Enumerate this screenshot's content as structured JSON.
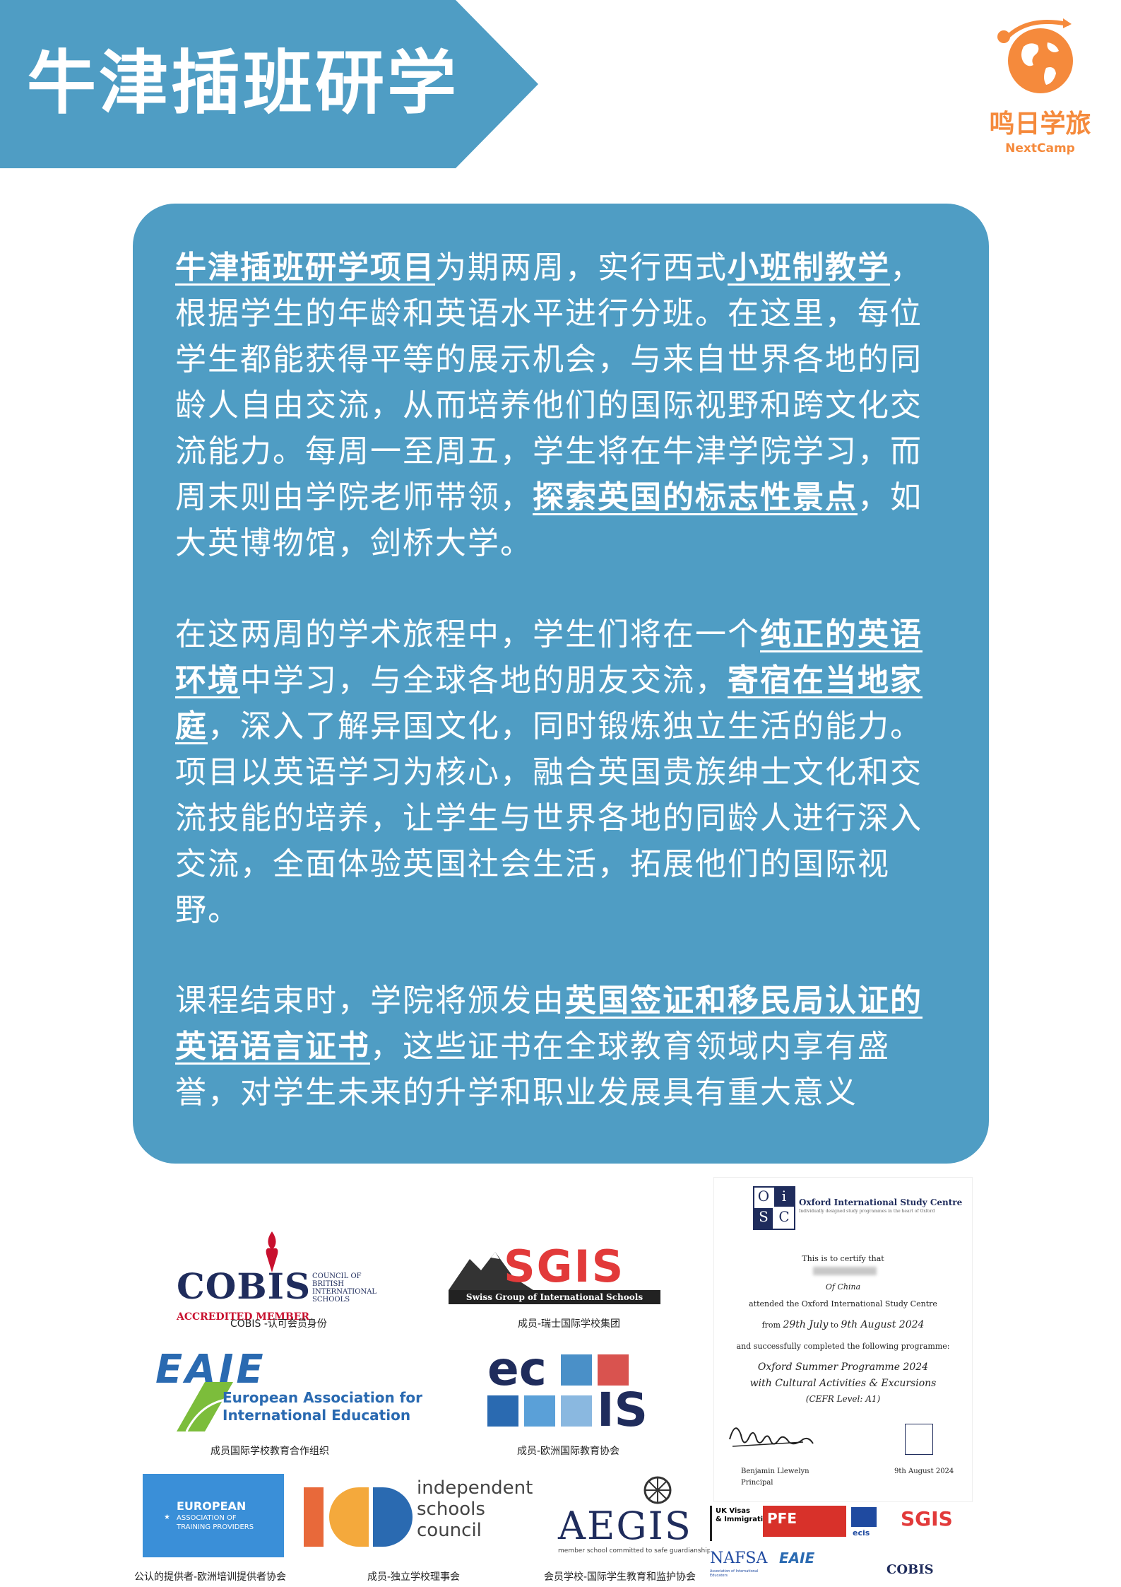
{
  "header": {
    "title": "牛津插班研学"
  },
  "logo": {
    "name": "鸣日学旅",
    "sub": "NextCamp",
    "icon": "globe-icon",
    "color": "#f58a3c"
  },
  "theme": {
    "primary": "#4f9dc4"
  },
  "card": {
    "p1": [
      {
        "text": "牛津插班研学项目",
        "hl": true
      },
      {
        "text": "为期两周，实行西式",
        "hl": false
      },
      {
        "text": "小班制教学",
        "hl": true
      },
      {
        "text": "，根据学生的年龄和英语水平进行分班。在这里，每位学生都能获得平等的展示机会，与来自世界各地的同龄人自由交流，从而培养他们的国际视野和跨文化交流能力。每周一至周五，学生将在牛津学院学习，而周末则由学院老师带领，",
        "hl": false
      },
      {
        "text": "探索英国的标志性景点",
        "hl": true
      },
      {
        "text": "，如大英博物馆，剑桥大学。",
        "hl": false
      }
    ],
    "p2": [
      {
        "text": "在这两周的学术旅程中，学生们将在一个",
        "hl": false
      },
      {
        "text": "纯正的英语环境",
        "hl": true
      },
      {
        "text": "中学习，与全球各地的朋友交流，",
        "hl": false
      },
      {
        "text": "寄宿在当地家庭",
        "hl": true
      },
      {
        "text": "，深入了解异国文化，同时锻炼独立生活的能力。项目以英语学习为核心，融合英国贵族绅士文化和交流技能的培养，让学生与世界各地的同龄人进行深入交流，全面体验英国社会生活，拓展他们的国际视野。",
        "hl": false
      }
    ],
    "p3": [
      {
        "text": "课程结束时，学院将颁发由",
        "hl": false
      },
      {
        "text": "英国签证和移民局认证的英语语言证书",
        "hl": true
      },
      {
        "text": "，这些证书在全球教育领域内享有盛誉，对学生未来的升学和职业发展具有重大意义",
        "hl": false
      }
    ]
  },
  "accreditations": {
    "cobis": {
      "logo": "COBIS",
      "side": [
        "COUNCIL OF",
        "BRITISH",
        "INTERNATIONAL",
        "SCHOOLS"
      ],
      "member": "ACCREDITED MEMBER",
      "caption": "COBIS -认可会员身份"
    },
    "sgis": {
      "logo": "SGIS",
      "banner": "Swiss Group of International Schools",
      "caption": "成员-瑞士国际学校集团"
    },
    "eaie": {
      "logo": "EAIE",
      "line1": "European Association for",
      "line2": "International Education",
      "caption": "成员国际学校教育合作组织"
    },
    "ecis": {
      "logo1": "ec",
      "logo2": "IS",
      "caption": "成员-欧洲国际教育协会"
    },
    "eatp": {
      "line1": "EUROPEAN",
      "line2": "ASSOCIATION OF",
      "line3": "TRAINING PROVIDERS",
      "caption": "公认的提供者-欧洲培训提供者协会"
    },
    "isc": {
      "line1": "independent",
      "line2": "schools",
      "line3": "council",
      "caption": "成员-独立学校理事会"
    },
    "aegis": {
      "logo": "AEGIS",
      "tagline": "member school committed to safe guardianship",
      "caption": "会员学校-国际学生教育和监护协会"
    }
  },
  "certificate": {
    "org_letters": [
      "O",
      "i",
      "S",
      "C"
    ],
    "org_name": "Oxford International Study Centre",
    "org_tagline": "Individually designed study programmes in the heart of Oxford",
    "l1": "This is to certify that",
    "l2": "Of China",
    "l3": "attended the Oxford International Study Centre",
    "from_word": "from",
    "from_date": "29th July",
    "to_word": "to",
    "to_date": "9th August 2024",
    "l5": "and successfully completed the following programme:",
    "prog1": "Oxford Summer Programme 2024",
    "prog2": "with Cultural Activities & Excursions",
    "prog3": "(CEFR Level: A1)",
    "signer": "Benjamin Llewelyn",
    "signer_role": "Principal",
    "date": "9th August 2024"
  },
  "memberships": {
    "ukvi": [
      "UK Visas",
      "& Immigration"
    ],
    "pfe": "PFE",
    "ecis": "ecis",
    "sgis": "SGIS",
    "nafsa": "NAFSA",
    "nafsa_sub": "Association of International Educators",
    "eaie": "EAIE",
    "cobis": "COBIS"
  }
}
